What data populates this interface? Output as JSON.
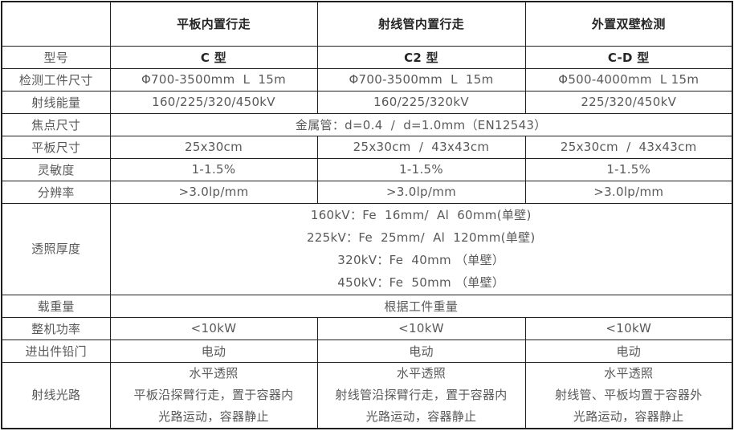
{
  "colors": {
    "border": "#1f1f1f",
    "body_text": "#595959",
    "heading_text": "#262626",
    "background": "#ffffff"
  },
  "table": {
    "columns": [
      "",
      "平板内置行走",
      "射线管内置行走",
      "外置双壁检测"
    ],
    "rows": [
      {
        "label": "型号",
        "cells": [
          "C 型",
          "C2 型",
          "C-D 型"
        ]
      },
      {
        "label": "检测工件尺寸",
        "cells": [
          "Φ700-3500mm  L  15m",
          "Φ700-3500mm  L  15m",
          "Φ500-4000mm  L 15m"
        ]
      },
      {
        "label": "射线能量",
        "cells": [
          "160/225/320/450kV",
          "160/225/320kV",
          "225/320/450kV"
        ]
      },
      {
        "label": "焦点尺寸",
        "span": "金属管：d=0.4  /  d=1.0mm（EN12543）"
      },
      {
        "label": "平板尺寸",
        "cells": [
          "25x30cm",
          "25x30cm  /  43x43cm",
          "25x30cm  /  43x43cm"
        ]
      },
      {
        "label": "灵敏度",
        "cells": [
          "1-1.5%",
          "1-1.5%",
          "1-1.5%"
        ]
      },
      {
        "label": "分辨率",
        "cells": [
          ">3.0lp/mm",
          ">3.0lp/mm",
          ">3.0lp/mm"
        ]
      },
      {
        "label": "透照厚度",
        "span": "160kV：Fe  16mm/  Al  60mm(单壁)\n225kV：Fe  25mm/  Al  120mm(单壁)\n320kV：Fe  40mm （单壁）\n450kV：Fe  50mm （单壁）"
      },
      {
        "label": "载重量",
        "span": "根据工件重量"
      },
      {
        "label": "整机功率",
        "cells": [
          "<10kW",
          "<10kW",
          "<10kW"
        ]
      },
      {
        "label": "进出件铅门",
        "cells": [
          "电动",
          "电动",
          "电动"
        ]
      },
      {
        "label": "射线光路",
        "cells": [
          "水平透照\n平板沿探臂行走，置于容器内\n光路运动，容器静止",
          "水平透照\n射线管沿探臂行走，置于容器内\n光路运动，容器静止",
          "水平透照\n射线管、平板均置于容器外\n光路运动，容器静止"
        ]
      }
    ]
  }
}
